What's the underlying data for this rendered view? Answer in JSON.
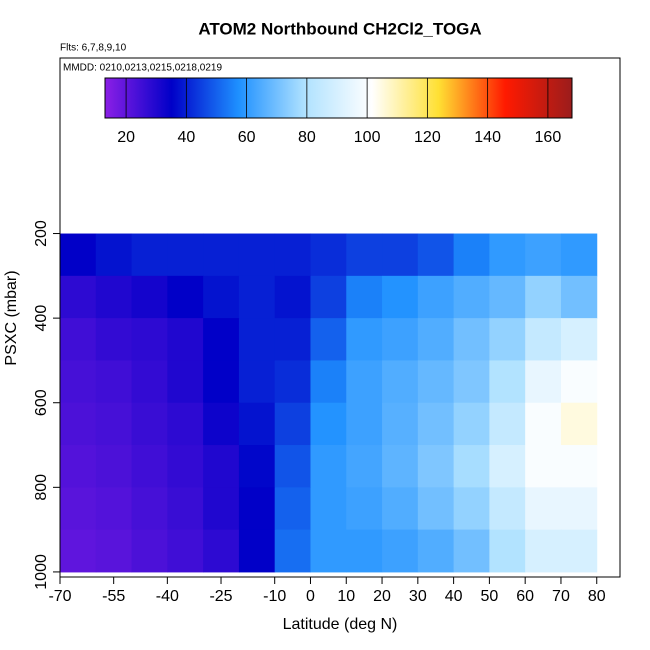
{
  "chart_data": {
    "type": "curtain",
    "title": "ATOM2 Northbound CH2Cl2_TOGA",
    "subtitle": "Flts: 6,7,8,9,10",
    "annotation": "MMDD: 0210,0213,0215,0218,0219",
    "x_label": "Latitude (deg N)",
    "y_label": "PSXC (mbar)",
    "xlim": [
      -70,
      86.5
    ],
    "xticks": [
      -70,
      -55,
      -40,
      -25,
      -10,
      0,
      10,
      20,
      30,
      40,
      50,
      60,
      70,
      80
    ],
    "ylim": [
      1012,
      -215
    ],
    "yticks": [
      200,
      400,
      600,
      800,
      1000
    ],
    "clim": [
      13,
      168
    ],
    "colorbar_ticks": [
      20,
      40,
      60,
      80,
      100,
      120,
      140,
      160
    ],
    "colormap": [
      "#8b1fe6",
      "#0000c8",
      "#1e90ff",
      "#b0e2ff",
      "#ffffff",
      "#ffe033",
      "#ff1a00",
      "#9b1c1c"
    ],
    "lat_bins": [
      -70,
      -60,
      -50,
      -40,
      -30,
      -20,
      -10,
      0,
      10,
      20,
      30,
      40,
      50,
      60,
      70,
      80
    ],
    "pressure_bins": [
      200,
      300,
      400,
      500,
      600,
      700,
      800,
      900,
      1000
    ],
    "z": [
      [
        35,
        38,
        40,
        40,
        40,
        40,
        40,
        42,
        45,
        45,
        48,
        55,
        60,
        62,
        60
      ],
      [
        28,
        30,
        32,
        35,
        38,
        40,
        38,
        45,
        55,
        58,
        62,
        65,
        68,
        75,
        70
      ],
      [
        25,
        27,
        28,
        30,
        35,
        40,
        40,
        50,
        60,
        62,
        65,
        70,
        75,
        85,
        90
      ],
      [
        24,
        25,
        27,
        30,
        35,
        40,
        42,
        55,
        62,
        65,
        68,
        72,
        80,
        95,
        100
      ],
      [
        23,
        24,
        26,
        28,
        33,
        38,
        45,
        58,
        62,
        66,
        70,
        75,
        85,
        100,
        105
      ],
      [
        22,
        23,
        25,
        27,
        30,
        36,
        48,
        60,
        63,
        67,
        72,
        78,
        90,
        100,
        100
      ],
      [
        21,
        22,
        24,
        26,
        30,
        35,
        50,
        60,
        62,
        65,
        70,
        75,
        85,
        95,
        95
      ],
      [
        20,
        21,
        23,
        25,
        28,
        35,
        52,
        60,
        60,
        62,
        65,
        70,
        80,
        90,
        90
      ]
    ]
  }
}
